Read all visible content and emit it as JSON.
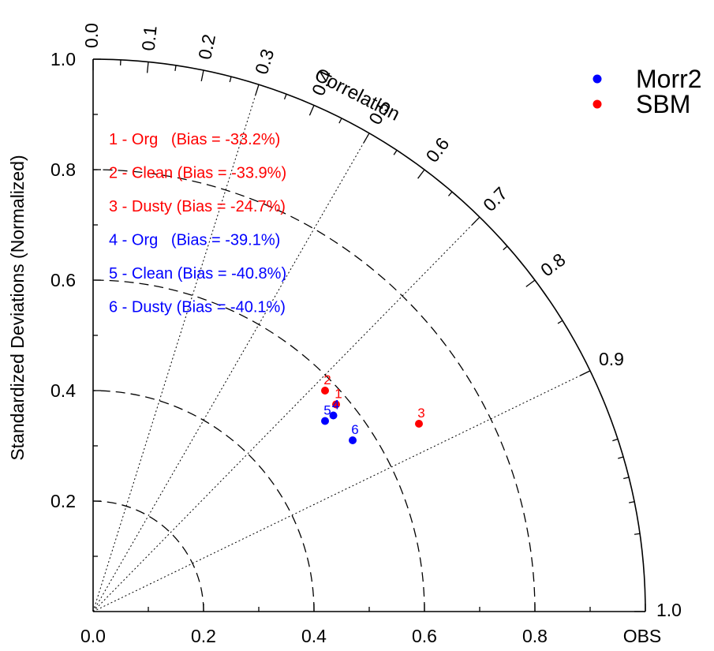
{
  "chart_data": {
    "type": "scatter",
    "subtype": "taylor-diagram",
    "ylabel": "Standardized Deviations (Normalized)",
    "arc_label": "Correlation",
    "x_ticks": [
      "0.0",
      "0.2",
      "0.4",
      "0.6",
      "0.8",
      "OBS"
    ],
    "y_ticks": [
      "0.2",
      "0.4",
      "0.6",
      "0.8",
      "1.0"
    ],
    "corr_major": [
      0.0,
      0.1,
      0.2,
      0.3,
      0.4,
      0.5,
      0.6,
      0.7,
      0.8,
      0.9,
      1.0
    ],
    "corr_labels": [
      "0.0",
      "0.1",
      "0.2",
      "0.3",
      "0.4",
      "0.5",
      "0.6",
      "0.7",
      "0.8",
      "0.9",
      "1.0"
    ],
    "corr_minor": [
      0.05,
      0.15,
      0.25,
      0.35,
      0.45,
      0.55,
      0.65,
      0.75,
      0.85,
      0.95,
      0.96,
      0.97,
      0.98,
      0.99
    ],
    "corr_radials": [
      0.3,
      0.5,
      0.7,
      0.9
    ],
    "std_arcs": [
      0.2,
      0.4,
      0.6,
      0.8
    ],
    "std_max": 1.0,
    "legend": [
      {
        "name": "Morr2",
        "color": "#0000ff"
      },
      {
        "name": "SBM",
        "color": "#ff0000"
      }
    ],
    "notes": [
      {
        "text": "1 - Org   (Bias = -33.2%)",
        "color": "#ff0000"
      },
      {
        "text": "2 - Clean (Bias = -33.9%)",
        "color": "#ff0000"
      },
      {
        "text": "3 - Dusty (Bias = -24.7%)",
        "color": "#ff0000"
      },
      {
        "text": "4 - Org   (Bias = -39.1%)",
        "color": "#0000ff"
      },
      {
        "text": "5 - Clean (Bias = -40.8%)",
        "color": "#0000ff"
      },
      {
        "text": "6 - Dusty (Bias = -40.1%)",
        "color": "#0000ff"
      }
    ],
    "points": [
      {
        "label": "1",
        "series": "SBM",
        "color": "#ff0000",
        "x": 0.44,
        "y": 0.375
      },
      {
        "label": "2",
        "series": "SBM",
        "color": "#ff0000",
        "x": 0.42,
        "y": 0.4
      },
      {
        "label": "3",
        "series": "SBM",
        "color": "#ff0000",
        "x": 0.59,
        "y": 0.34
      },
      {
        "label": "4",
        "series": "Morr2",
        "color": "#0000ff",
        "x": 0.435,
        "y": 0.355
      },
      {
        "label": "5",
        "series": "Morr2",
        "color": "#0000ff",
        "x": 0.42,
        "y": 0.345
      },
      {
        "label": "6",
        "series": "Morr2",
        "color": "#0000ff",
        "x": 0.47,
        "y": 0.31
      }
    ]
  }
}
